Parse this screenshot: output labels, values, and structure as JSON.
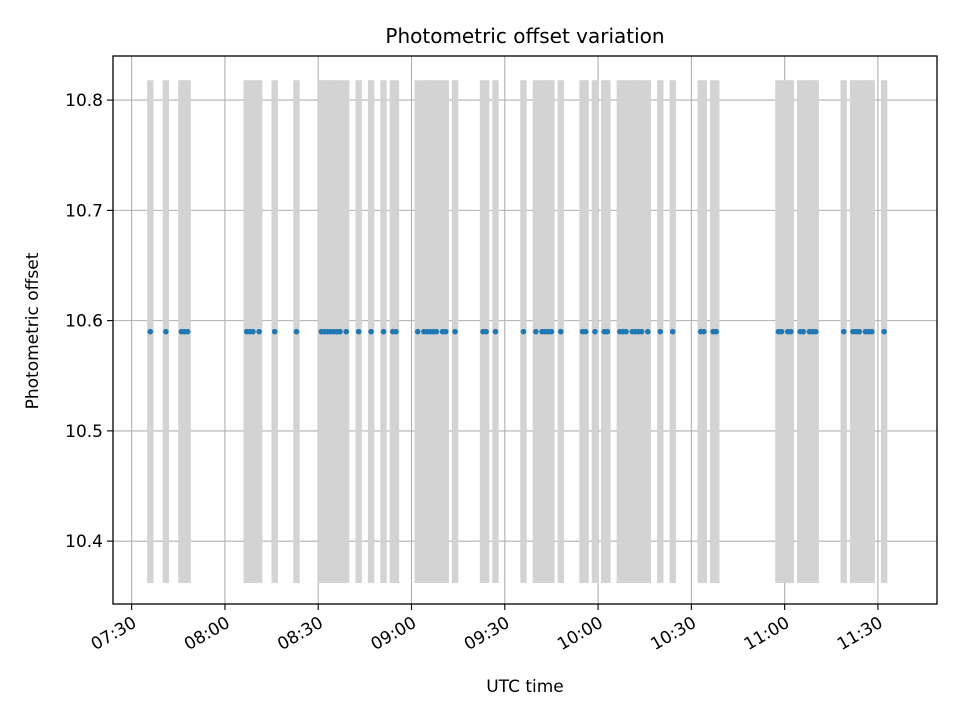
{
  "chart_data": {
    "type": "scatter",
    "title": "Photometric offset variation",
    "xlabel": "UTC time",
    "ylabel": "Photometric offset",
    "xlim": [
      "07:24",
      "11:49"
    ],
    "ylim": [
      10.343,
      10.84
    ],
    "grid": true,
    "x_ticks": [
      "07:30",
      "08:00",
      "08:30",
      "09:00",
      "09:30",
      "10:00",
      "10:30",
      "11:00",
      "11:30"
    ],
    "y_ticks": [
      "10.4",
      "10.5",
      "10.6",
      "10.7",
      "10.8"
    ],
    "band_range": [
      10.362,
      10.818
    ],
    "band_times": [
      "07:36",
      "07:41",
      "07:46",
      "07:47",
      "07:48",
      "08:07",
      "08:08",
      "08:09",
      "08:11",
      "08:16",
      "08:23",
      "08:31",
      "08:32",
      "08:33",
      "08:34",
      "08:35",
      "08:36",
      "08:37",
      "08:39",
      "08:43",
      "08:47",
      "08:51",
      "08:54",
      "08:55",
      "09:02",
      "09:04",
      "09:05",
      "09:06",
      "09:07",
      "09:08",
      "09:10",
      "09:11",
      "09:14",
      "09:23",
      "09:24",
      "09:27",
      "09:36",
      "09:40",
      "09:42",
      "09:43",
      "09:44",
      "09:45",
      "09:48",
      "09:55",
      "09:56",
      "09:59",
      "10:02",
      "10:03",
      "10:07",
      "10:08",
      "10:09",
      "10:11",
      "10:12",
      "10:13",
      "10:14",
      "10:16",
      "10:20",
      "10:24",
      "10:33",
      "10:34",
      "10:37",
      "10:38",
      "10:58",
      "10:59",
      "11:01",
      "11:02",
      "11:05",
      "11:06",
      "11:08",
      "11:09",
      "11:10",
      "11:19",
      "11:22",
      "11:23",
      "11:24",
      "11:26",
      "11:27",
      "11:28",
      "11:32"
    ],
    "series": [
      {
        "color": "#1f77b4",
        "x": [
          "07:36",
          "07:41",
          "07:46",
          "07:47",
          "07:48",
          "08:07",
          "08:08",
          "08:09",
          "08:11",
          "08:16",
          "08:23",
          "08:31",
          "08:32",
          "08:33",
          "08:34",
          "08:35",
          "08:36",
          "08:37",
          "08:39",
          "08:43",
          "08:47",
          "08:51",
          "08:54",
          "08:55",
          "09:02",
          "09:04",
          "09:05",
          "09:06",
          "09:07",
          "09:08",
          "09:10",
          "09:11",
          "09:14",
          "09:23",
          "09:24",
          "09:27",
          "09:36",
          "09:40",
          "09:42",
          "09:43",
          "09:44",
          "09:45",
          "09:48",
          "09:55",
          "09:56",
          "09:59",
          "10:02",
          "10:03",
          "10:07",
          "10:08",
          "10:09",
          "10:11",
          "10:12",
          "10:13",
          "10:14",
          "10:16",
          "10:20",
          "10:24",
          "10:33",
          "10:34",
          "10:37",
          "10:38",
          "10:58",
          "10:59",
          "11:01",
          "11:02",
          "11:05",
          "11:06",
          "11:08",
          "11:09",
          "11:10",
          "11:19",
          "11:22",
          "11:23",
          "11:24",
          "11:26",
          "11:27",
          "11:28",
          "11:32"
        ],
        "y": [
          10.59,
          10.59,
          10.59,
          10.59,
          10.59,
          10.59,
          10.59,
          10.59,
          10.59,
          10.59,
          10.59,
          10.59,
          10.59,
          10.59,
          10.59,
          10.59,
          10.59,
          10.59,
          10.59,
          10.59,
          10.59,
          10.59,
          10.59,
          10.59,
          10.59,
          10.59,
          10.59,
          10.59,
          10.59,
          10.59,
          10.59,
          10.59,
          10.59,
          10.59,
          10.59,
          10.59,
          10.59,
          10.59,
          10.59,
          10.59,
          10.59,
          10.59,
          10.59,
          10.59,
          10.59,
          10.59,
          10.59,
          10.59,
          10.59,
          10.59,
          10.59,
          10.59,
          10.59,
          10.59,
          10.59,
          10.59,
          10.59,
          10.59,
          10.59,
          10.59,
          10.59,
          10.59,
          10.59,
          10.59,
          10.59,
          10.59,
          10.59,
          10.59,
          10.59,
          10.59,
          10.59,
          10.59,
          10.59,
          10.59,
          10.59,
          10.59,
          10.59,
          10.59,
          10.59
        ]
      }
    ],
    "band_color": "#d3d3d3",
    "grid_color": "#b0b0b0"
  }
}
